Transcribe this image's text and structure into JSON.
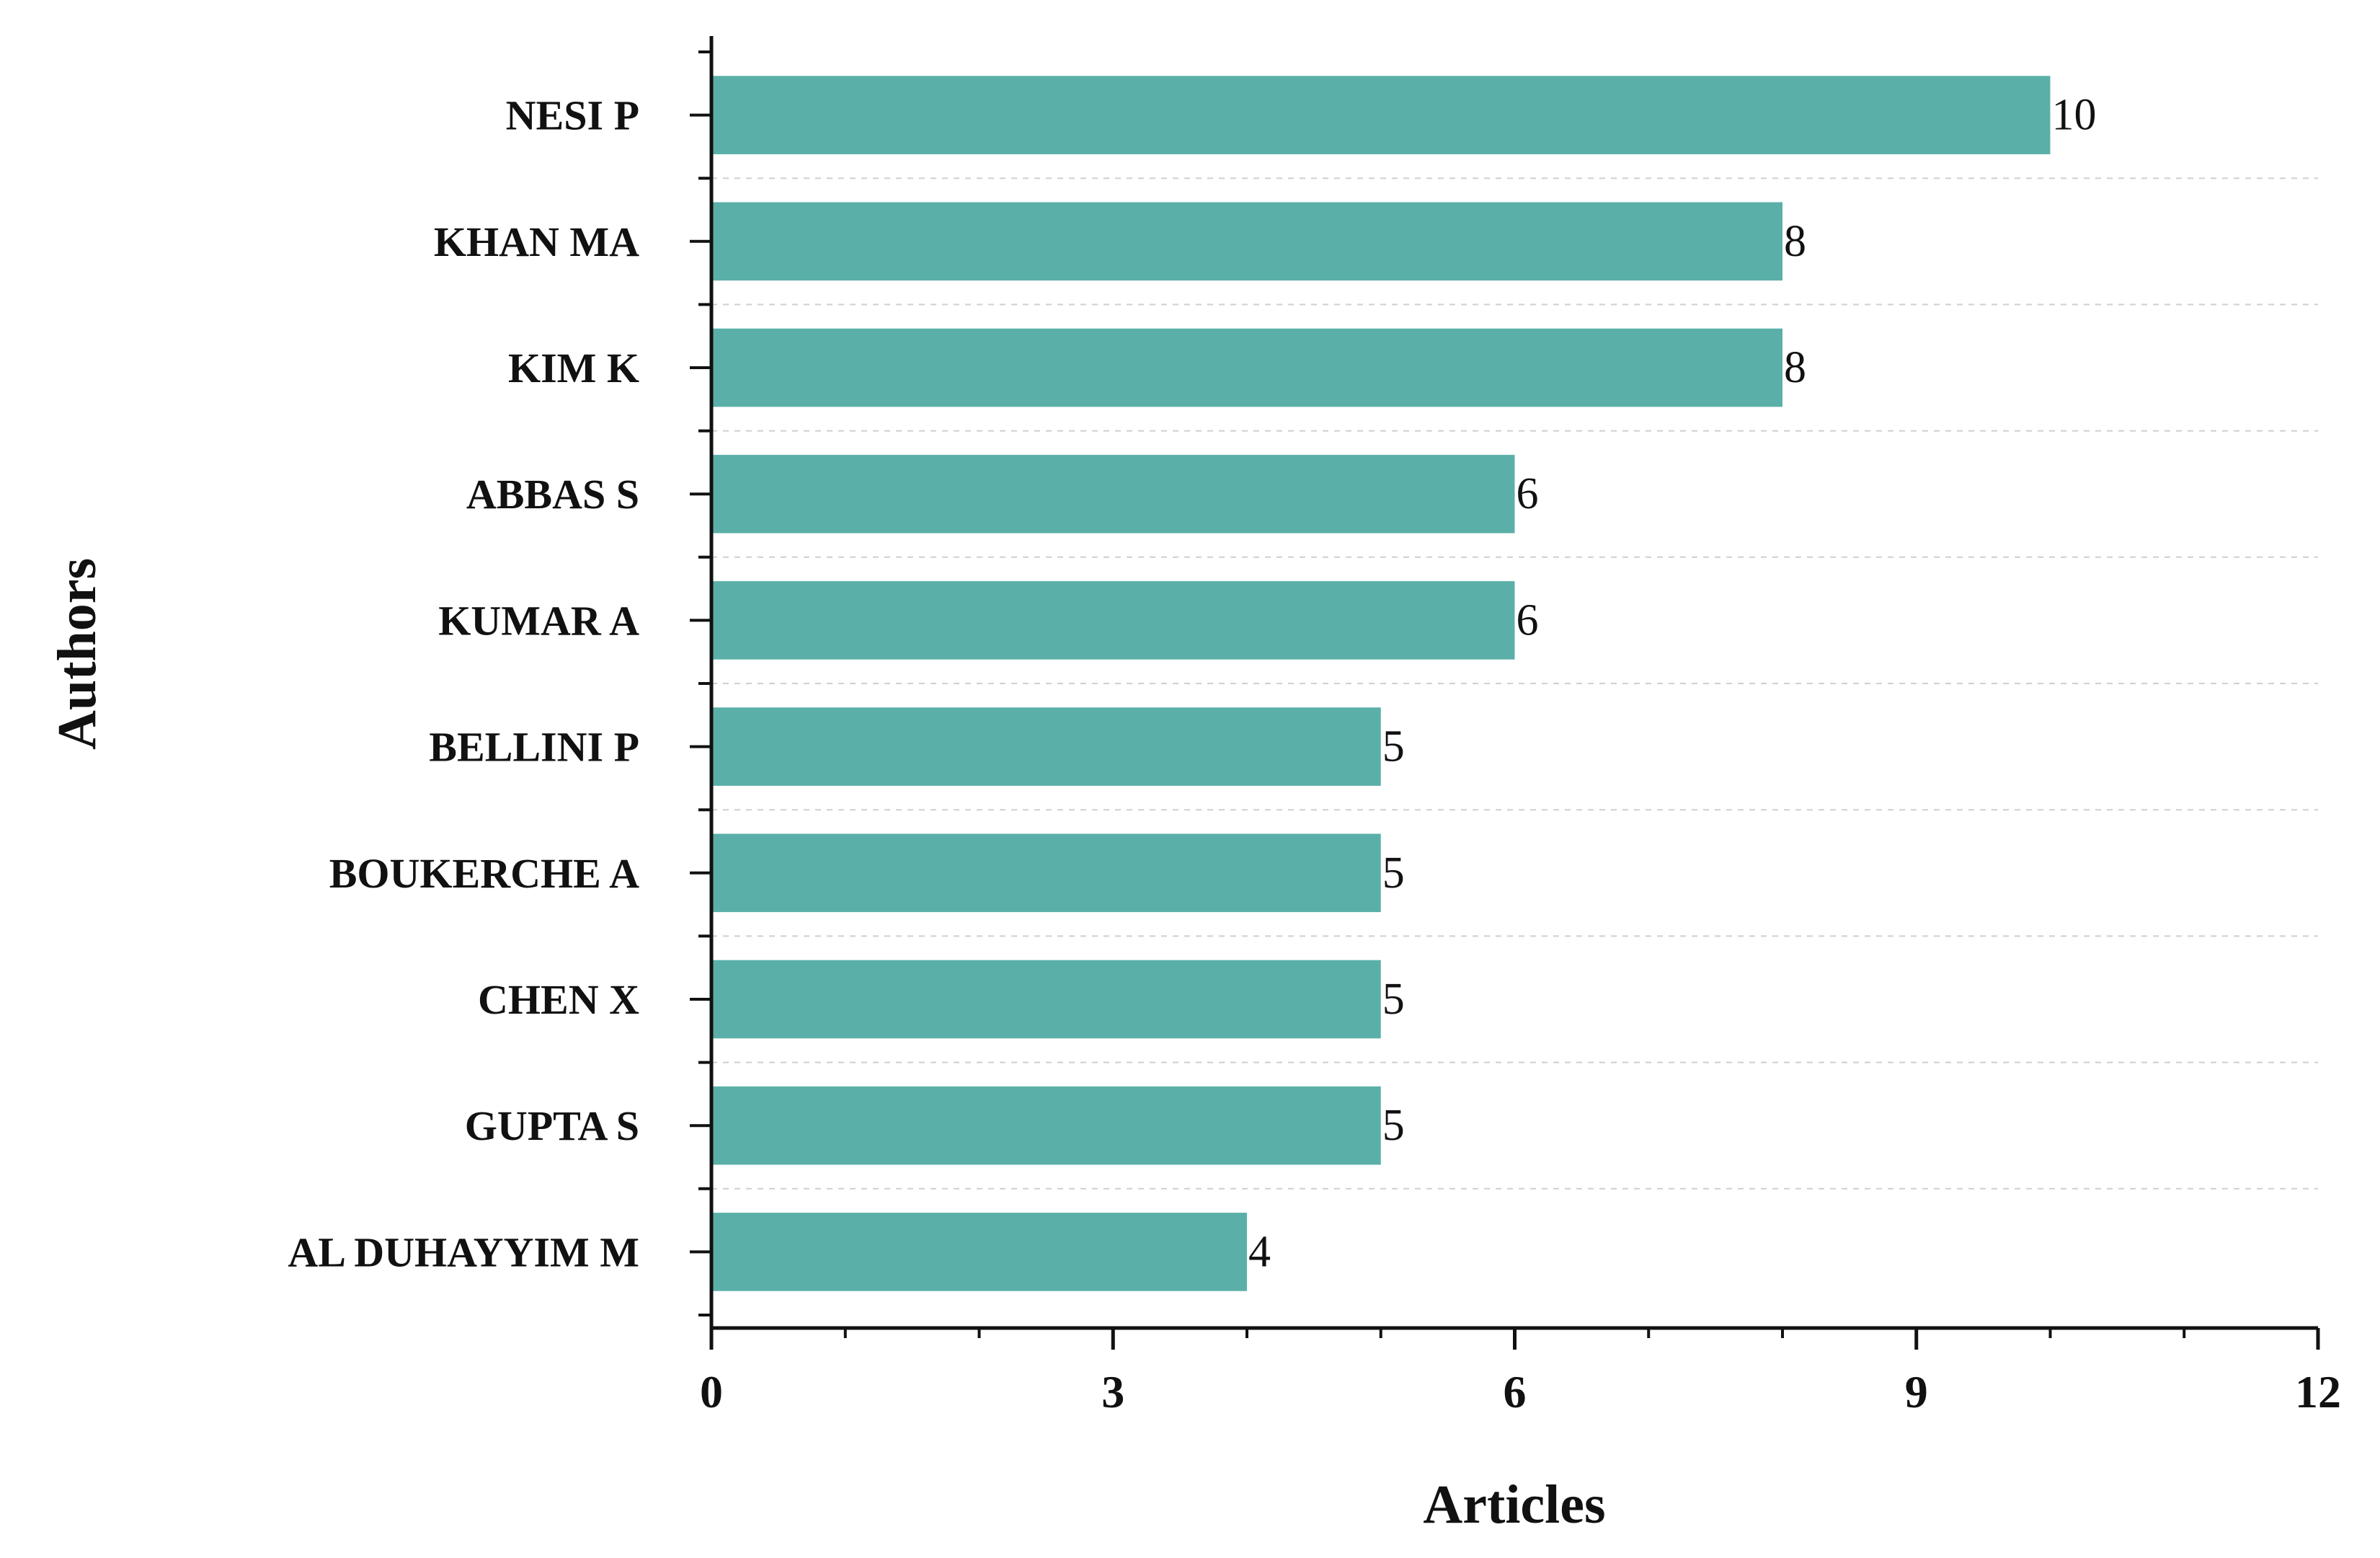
{
  "chart_data": {
    "type": "bar",
    "orientation": "horizontal",
    "title": "",
    "xlabel": "Articles",
    "ylabel": "Authors",
    "categories": [
      "NESI P",
      "KHAN MA",
      "KIM K",
      "ABBAS S",
      "KUMAR A",
      "BELLINI P",
      "BOUKERCHE A",
      "CHEN X",
      "GUPTA S",
      "AL DUHAYYIM M"
    ],
    "values": [
      10,
      8,
      8,
      6,
      6,
      5,
      5,
      5,
      5,
      4
    ],
    "data_labels": [
      "10",
      "8",
      "8",
      "6",
      "6",
      "5",
      "5",
      "5",
      "5",
      "4"
    ],
    "xlim": [
      0,
      12
    ],
    "xticks": [
      0,
      3,
      6,
      9,
      12
    ],
    "xtick_labels": [
      "0",
      "3",
      "6",
      "9",
      "12"
    ],
    "grid": "dashed horizontal",
    "legend": "none",
    "bar_color": "#5ab0a8"
  }
}
